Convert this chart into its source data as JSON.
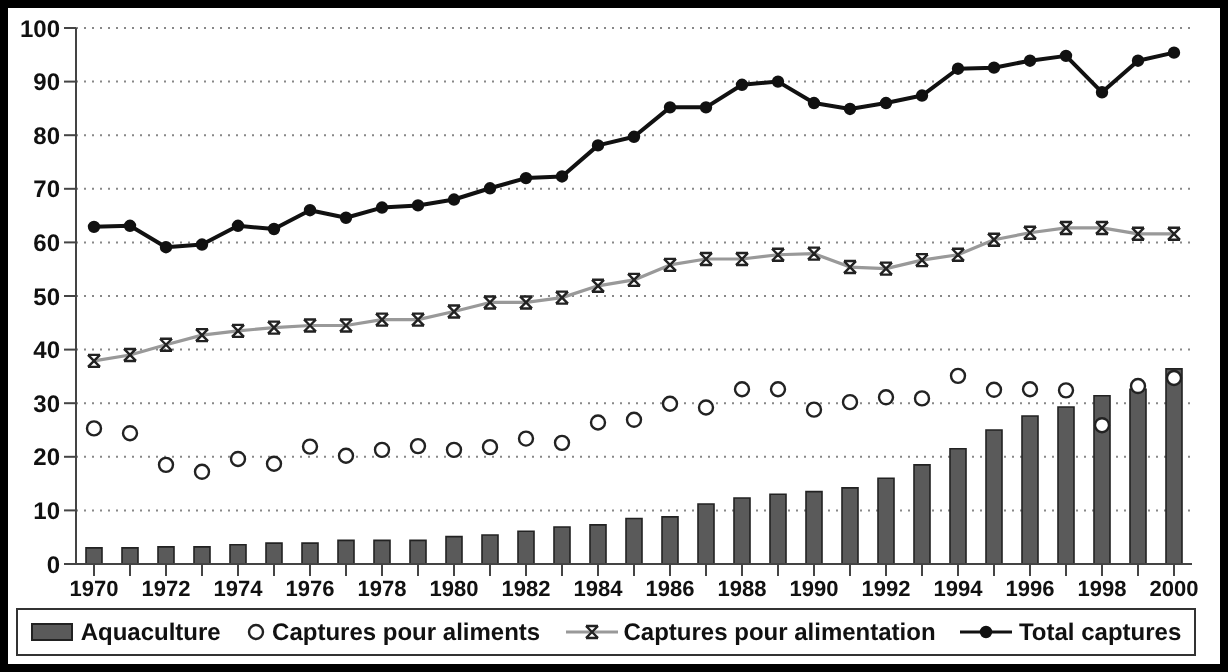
{
  "chart_data": {
    "type": "bar",
    "categories": [
      "1970",
      null,
      "1972",
      null,
      "1974",
      null,
      "1976",
      null,
      "1978",
      null,
      "1980",
      null,
      "1982",
      null,
      "1984",
      null,
      "1986",
      null,
      "1988",
      null,
      "1990",
      null,
      "1992",
      null,
      "1994",
      null,
      "1996",
      null,
      "1998",
      null,
      "2000"
    ],
    "series": [
      {
        "name": "Aquaculture",
        "color": "#5a5a5a",
        "values": [
          3.0,
          3.0,
          3.2,
          3.2,
          3.6,
          3.9,
          3.9,
          4.4,
          4.4,
          4.4,
          5.1,
          5.4,
          6.1,
          6.9,
          7.3,
          8.5,
          8.8,
          11.2,
          12.3,
          13.0,
          13.5,
          14.2,
          16.0,
          18.5,
          21.5,
          25.0,
          27.6,
          29.3,
          31.4,
          32.6,
          36.4
        ]
      },
      {
        "name": "Captures pour aliments",
        "type": "scatter",
        "marker": "circle",
        "color": "#ffffff",
        "values": [
          25.3,
          24.4,
          18.5,
          17.2,
          19.6,
          18.7,
          21.9,
          20.2,
          21.3,
          22.0,
          21.3,
          21.8,
          23.4,
          22.6,
          26.4,
          26.9,
          29.9,
          29.2,
          32.6,
          32.6,
          28.8,
          30.2,
          31.1,
          30.9,
          35.1,
          32.5,
          32.6,
          32.4,
          25.9,
          33.2,
          34.7
        ]
      },
      {
        "name": "Captures pour alimentation",
        "type": "line",
        "marker": "cross",
        "color": "#999999",
        "values": [
          37.9,
          39.0,
          40.9,
          42.7,
          43.5,
          44.1,
          44.5,
          44.5,
          45.6,
          45.6,
          47.1,
          48.8,
          48.8,
          49.7,
          51.9,
          53.0,
          55.8,
          56.9,
          56.9,
          57.7,
          57.9,
          55.4,
          55.1,
          56.7,
          57.7,
          60.5,
          61.8,
          62.7,
          62.7,
          61.6,
          61.6
        ]
      },
      {
        "name": "Total captures",
        "type": "line",
        "marker": "circle",
        "color": "#111111",
        "values": [
          62.9,
          63.1,
          59.1,
          59.6,
          63.1,
          62.5,
          66.0,
          64.6,
          66.5,
          66.9,
          68.0,
          70.1,
          72.0,
          72.3,
          78.1,
          79.7,
          85.2,
          85.2,
          89.4,
          90.0,
          86.0,
          84.9,
          86.0,
          87.4,
          92.4,
          92.6,
          93.9,
          94.8,
          88.0,
          93.9,
          95.4
        ]
      }
    ],
    "ylim": [
      0,
      100
    ],
    "yticks": [
      0,
      10,
      20,
      30,
      40,
      50,
      60,
      70,
      80,
      90,
      100
    ],
    "grid": "y",
    "legend": "bottom"
  }
}
